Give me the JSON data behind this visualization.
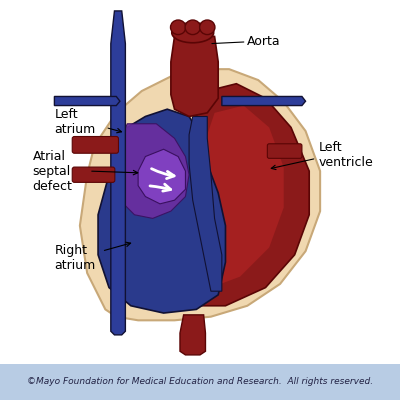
{
  "bg_color": "#ffffff",
  "footer_bg": "#b8cce4",
  "footer_text": "©Mayo Foundation for Medical Education and Research.  All rights reserved.",
  "footer_fontsize": 6.5,
  "labels": {
    "aorta": "Aorta",
    "left_atrium": "Left\natrium",
    "atrial_septal": "Atrial\nseptal\ndefect",
    "right_atrium": "Right\natrium",
    "left_ventricle": "Left\nventricle"
  },
  "colors": {
    "heart_outer": "#f0d8b0",
    "heart_outer_edge": "#c8a878",
    "dark_red": "#8b1a1a",
    "dark_red2": "#a52020",
    "outline_red": "#5a0505",
    "dark_blue": "#2a3a8c",
    "vein_blue": "#2d3d9a",
    "outline_dark": "#111133",
    "purple": "#6b2fa0",
    "bright_purple": "#8040c0",
    "purple_edge": "#3a1060"
  }
}
